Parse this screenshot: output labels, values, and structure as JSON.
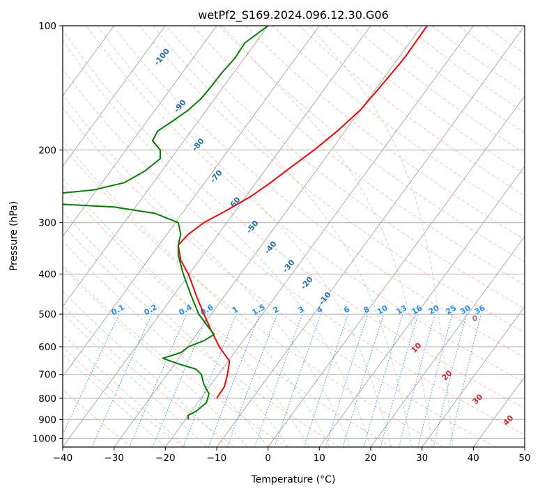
{
  "chart_data": {
    "type": "line",
    "title": "wetPf2_S169.2024.096.12.30.G06",
    "xlabel": "Temperature (°C)",
    "ylabel": "Pressure (hPa)",
    "xlim": [
      -40,
      50
    ],
    "ylim": [
      1050,
      100
    ],
    "y_scale": "log",
    "x_ticks": [
      -40,
      -30,
      -20,
      -10,
      0,
      10,
      20,
      30,
      40,
      50
    ],
    "y_ticks": [
      100,
      200,
      300,
      400,
      500,
      600,
      700,
      800,
      900,
      1000
    ],
    "grid": true,
    "series": [
      {
        "color": "#ff0000",
        "points": [
          {
            "p": 800,
            "t": -10.0
          },
          {
            "p": 750,
            "t": -8.5
          },
          {
            "p": 700,
            "t": -7.9
          },
          {
            "p": 650,
            "t": -7.5
          },
          {
            "p": 600,
            "t": -9.5
          },
          {
            "p": 550,
            "t": -11.0
          },
          {
            "p": 500,
            "t": -12.5
          },
          {
            "p": 450,
            "t": -14.0
          },
          {
            "p": 400,
            "t": -15.5
          },
          {
            "p": 370,
            "t": -17.0
          },
          {
            "p": 340,
            "t": -17.5
          },
          {
            "p": 320,
            "t": -15.5
          },
          {
            "p": 300,
            "t": -12.5
          },
          {
            "p": 280,
            "t": -8.0
          },
          {
            "p": 260,
            "t": -3.5
          },
          {
            "p": 240,
            "t": 0.5
          },
          {
            "p": 220,
            "t": 4.5
          },
          {
            "p": 200,
            "t": 9.0
          },
          {
            "p": 180,
            "t": 13.5
          },
          {
            "p": 160,
            "t": 18.0
          },
          {
            "p": 140,
            "t": 22.0
          },
          {
            "p": 120,
            "t": 26.5
          },
          {
            "p": 100,
            "t": 31.0
          }
        ]
      },
      {
        "color": "#008000",
        "points": [
          {
            "p": 900,
            "t": -15.5
          },
          {
            "p": 880,
            "t": -15.6
          },
          {
            "p": 860,
            "t": -14.0
          },
          {
            "p": 820,
            "t": -12.0
          },
          {
            "p": 780,
            "t": -11.5
          },
          {
            "p": 740,
            "t": -12.5
          },
          {
            "p": 700,
            "t": -13.0
          },
          {
            "p": 680,
            "t": -14.0
          },
          {
            "p": 660,
            "t": -17.5
          },
          {
            "p": 640,
            "t": -20.5
          },
          {
            "p": 620,
            "t": -17.0
          },
          {
            "p": 600,
            "t": -15.5
          },
          {
            "p": 580,
            "t": -12.5
          },
          {
            "p": 560,
            "t": -10.5
          },
          {
            "p": 540,
            "t": -11.5
          },
          {
            "p": 500,
            "t": -13.5
          },
          {
            "p": 450,
            "t": -15.0
          },
          {
            "p": 400,
            "t": -16.5
          },
          {
            "p": 360,
            "t": -17.5
          },
          {
            "p": 340,
            "t": -17.5
          },
          {
            "p": 320,
            "t": -17.0
          },
          {
            "p": 300,
            "t": -17.5
          },
          {
            "p": 285,
            "t": -22.0
          },
          {
            "p": 275,
            "t": -30.0
          },
          {
            "p": 270,
            "t": -42.0
          },
          {
            "p": 255,
            "t": -41.0
          },
          {
            "p": 250,
            "t": -34.0
          },
          {
            "p": 240,
            "t": -28.0
          },
          {
            "p": 225,
            "t": -24.0
          },
          {
            "p": 210,
            "t": -21.0
          },
          {
            "p": 200,
            "t": -21.0
          },
          {
            "p": 190,
            "t": -22.5
          },
          {
            "p": 180,
            "t": -21.5
          },
          {
            "p": 170,
            "t": -18.5
          },
          {
            "p": 160,
            "t": -15.5
          },
          {
            "p": 150,
            "t": -13.0
          },
          {
            "p": 140,
            "t": -11.0
          },
          {
            "p": 130,
            "t": -9.0
          },
          {
            "p": 120,
            "t": -6.5
          },
          {
            "p": 110,
            "t": -4.5
          },
          {
            "p": 100,
            "t": 0.0
          }
        ]
      }
    ],
    "overlays": {
      "dry_adiabat_labels": [
        "-100",
        "-90",
        "-80",
        "-70",
        "-60",
        "-50",
        "-40",
        "-30",
        "-20",
        "-10"
      ],
      "moist_adiabat_label": "0",
      "mixing_ratio_labels": [
        "0.1",
        "0.2",
        "0.4",
        "0.6",
        "1",
        "1.5",
        "2",
        "3",
        "4",
        "6",
        "8",
        "10",
        "13",
        "16",
        "20",
        "25",
        "30",
        "36"
      ],
      "isotherm_labels": [
        "10",
        "20",
        "30",
        "40"
      ],
      "colors": {
        "dry_adiabat": "#ff8c69",
        "moist_adiabat": "#79c779",
        "mixing_ratio": "#1e90ff",
        "isotherm": "#888888",
        "dry_label": "#1f6fb5",
        "mix_label": "#1e90ff",
        "iso_label": "#d62728",
        "moist_label": "#808080"
      }
    }
  }
}
